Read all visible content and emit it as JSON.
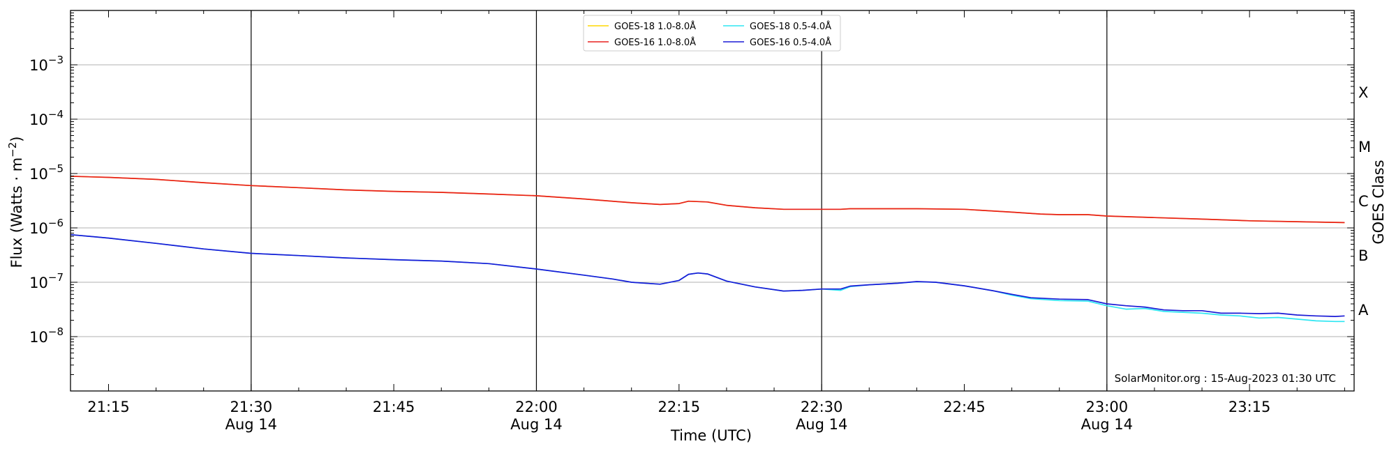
{
  "chart_data": {
    "type": "line",
    "xlabel": "Time (UTC)",
    "ylabel_main": "Flux (Watts · m",
    "ylabel_exp": "−2",
    "ylabel_close": ")",
    "ylabel_right": "GOES Class",
    "y_scale": "log",
    "xlim": [
      "21:11",
      "23:26"
    ],
    "ylim": [
      1e-09,
      0.01
    ],
    "grid": "horizontal at decades",
    "legend_position": "top-center",
    "x_ticks": [
      {
        "time": "21:15",
        "label": "21:15",
        "sublabel": ""
      },
      {
        "time": "21:30",
        "label": "21:30",
        "sublabel": "Aug 14"
      },
      {
        "time": "21:45",
        "label": "21:45",
        "sublabel": ""
      },
      {
        "time": "22:00",
        "label": "22:00",
        "sublabel": "Aug 14"
      },
      {
        "time": "22:15",
        "label": "22:15",
        "sublabel": ""
      },
      {
        "time": "22:30",
        "label": "22:30",
        "sublabel": "Aug 14"
      },
      {
        "time": "22:45",
        "label": "22:45",
        "sublabel": ""
      },
      {
        "time": "23:00",
        "label": "23:00",
        "sublabel": "Aug 14"
      },
      {
        "time": "23:15",
        "label": "23:15",
        "sublabel": ""
      }
    ],
    "vertical_lines": [
      "21:30",
      "22:00",
      "22:30",
      "23:00"
    ],
    "y_ticks": [
      {
        "exp": -3,
        "base": "10",
        "sup": "−3"
      },
      {
        "exp": -4,
        "base": "10",
        "sup": "−4"
      },
      {
        "exp": -5,
        "base": "10",
        "sup": "−5"
      },
      {
        "exp": -6,
        "base": "10",
        "sup": "−6"
      },
      {
        "exp": -7,
        "base": "10",
        "sup": "−7"
      },
      {
        "exp": -8,
        "base": "10",
        "sup": "−8"
      }
    ],
    "goes_classes": [
      {
        "label": "X",
        "log_flux": -3.5
      },
      {
        "label": "M",
        "log_flux": -4.5
      },
      {
        "label": "C",
        "log_flux": -5.5
      },
      {
        "label": "B",
        "log_flux": -6.5
      },
      {
        "label": "A",
        "log_flux": -7.5
      }
    ],
    "series": [
      {
        "name": "GOES-18 1.0-8.0Å",
        "color": "#ffd700",
        "points": [
          [
            "21:11",
            8.9e-06
          ],
          [
            "21:15",
            8.5e-06
          ],
          [
            "21:20",
            7.8e-06
          ],
          [
            "21:25",
            6.8e-06
          ],
          [
            "21:30",
            6e-06
          ],
          [
            "21:35",
            5.5e-06
          ],
          [
            "21:40",
            5e-06
          ],
          [
            "21:45",
            4.7e-06
          ],
          [
            "21:50",
            4.5e-06
          ],
          [
            "21:55",
            4.2e-06
          ],
          [
            "22:00",
            3.9e-06
          ],
          [
            "22:05",
            3.4e-06
          ],
          [
            "22:10",
            2.9e-06
          ],
          [
            "22:13",
            2.7e-06
          ],
          [
            "22:15",
            2.8e-06
          ],
          [
            "22:16",
            3.1e-06
          ],
          [
            "22:18",
            3e-06
          ],
          [
            "22:20",
            2.6e-06
          ],
          [
            "22:23",
            2.35e-06
          ],
          [
            "22:26",
            2.2e-06
          ],
          [
            "22:30",
            2.2e-06
          ],
          [
            "22:32",
            2.2e-06
          ],
          [
            "22:33",
            2.25e-06
          ],
          [
            "22:36",
            2.25e-06
          ],
          [
            "22:40",
            2.25e-06
          ],
          [
            "22:45",
            2.2e-06
          ],
          [
            "22:50",
            1.95e-06
          ],
          [
            "22:53",
            1.8e-06
          ],
          [
            "22:55",
            1.75e-06
          ],
          [
            "22:58",
            1.75e-06
          ],
          [
            "23:00",
            1.65e-06
          ],
          [
            "23:05",
            1.55e-06
          ],
          [
            "23:10",
            1.45e-06
          ],
          [
            "23:15",
            1.35e-06
          ],
          [
            "23:20",
            1.3e-06
          ],
          [
            "23:25",
            1.25e-06
          ]
        ]
      },
      {
        "name": "GOES-16 1.0-8.0Å",
        "color": "#e8201e",
        "points": [
          [
            "21:11",
            8.9e-06
          ],
          [
            "21:15",
            8.5e-06
          ],
          [
            "21:20",
            7.8e-06
          ],
          [
            "21:25",
            6.8e-06
          ],
          [
            "21:30",
            6e-06
          ],
          [
            "21:35",
            5.5e-06
          ],
          [
            "21:40",
            5e-06
          ],
          [
            "21:45",
            4.7e-06
          ],
          [
            "21:50",
            4.5e-06
          ],
          [
            "21:55",
            4.2e-06
          ],
          [
            "22:00",
            3.9e-06
          ],
          [
            "22:05",
            3.4e-06
          ],
          [
            "22:10",
            2.9e-06
          ],
          [
            "22:13",
            2.7e-06
          ],
          [
            "22:15",
            2.8e-06
          ],
          [
            "22:16",
            3.1e-06
          ],
          [
            "22:18",
            3e-06
          ],
          [
            "22:20",
            2.6e-06
          ],
          [
            "22:23",
            2.35e-06
          ],
          [
            "22:26",
            2.2e-06
          ],
          [
            "22:30",
            2.2e-06
          ],
          [
            "22:32",
            2.2e-06
          ],
          [
            "22:33",
            2.25e-06
          ],
          [
            "22:36",
            2.25e-06
          ],
          [
            "22:40",
            2.25e-06
          ],
          [
            "22:45",
            2.2e-06
          ],
          [
            "22:50",
            1.95e-06
          ],
          [
            "22:53",
            1.8e-06
          ],
          [
            "22:55",
            1.75e-06
          ],
          [
            "22:58",
            1.75e-06
          ],
          [
            "23:00",
            1.65e-06
          ],
          [
            "23:05",
            1.55e-06
          ],
          [
            "23:10",
            1.45e-06
          ],
          [
            "23:15",
            1.35e-06
          ],
          [
            "23:20",
            1.3e-06
          ],
          [
            "23:25",
            1.25e-06
          ]
        ]
      },
      {
        "name": "GOES-18 0.5-4.0Å",
        "color": "#2ee6f2",
        "points": [
          [
            "21:11",
            7.5e-07
          ],
          [
            "21:15",
            6.5e-07
          ],
          [
            "21:20",
            5.2e-07
          ],
          [
            "21:25",
            4.1e-07
          ],
          [
            "21:30",
            3.4e-07
          ],
          [
            "21:35",
            3.1e-07
          ],
          [
            "21:40",
            2.8e-07
          ],
          [
            "21:45",
            2.6e-07
          ],
          [
            "21:50",
            2.45e-07
          ],
          [
            "21:55",
            2.2e-07
          ],
          [
            "22:00",
            1.75e-07
          ],
          [
            "22:05",
            1.35e-07
          ],
          [
            "22:08",
            1.15e-07
          ],
          [
            "22:10",
            1e-07
          ],
          [
            "22:13",
            9.2e-08
          ],
          [
            "22:15",
            1.08e-07
          ],
          [
            "22:16",
            1.4e-07
          ],
          [
            "22:17",
            1.48e-07
          ],
          [
            "22:18",
            1.42e-07
          ],
          [
            "22:20",
            1.05e-07
          ],
          [
            "22:23",
            8.2e-08
          ],
          [
            "22:26",
            6.9e-08
          ],
          [
            "22:28",
            7.1e-08
          ],
          [
            "22:30",
            7.5e-08
          ],
          [
            "22:32",
            7.1e-08
          ],
          [
            "22:33",
            8.3e-08
          ],
          [
            "22:35",
            9e-08
          ],
          [
            "22:38",
            9.6e-08
          ],
          [
            "22:40",
            1.02e-07
          ],
          [
            "22:42",
            1e-07
          ],
          [
            "22:45",
            8.6e-08
          ],
          [
            "22:48",
            7e-08
          ],
          [
            "22:50",
            5.8e-08
          ],
          [
            "22:52",
            5e-08
          ],
          [
            "22:55",
            4.6e-08
          ],
          [
            "22:58",
            4.5e-08
          ],
          [
            "23:00",
            3.7e-08
          ],
          [
            "23:02",
            3.2e-08
          ],
          [
            "23:04",
            3.3e-08
          ],
          [
            "23:06",
            2.9e-08
          ],
          [
            "23:08",
            2.8e-08
          ],
          [
            "23:10",
            2.7e-08
          ],
          [
            "23:12",
            2.5e-08
          ],
          [
            "23:14",
            2.4e-08
          ],
          [
            "23:16",
            2.2e-08
          ],
          [
            "23:18",
            2.25e-08
          ],
          [
            "23:20",
            2.1e-08
          ],
          [
            "23:22",
            1.95e-08
          ],
          [
            "23:24",
            1.9e-08
          ],
          [
            "23:25",
            1.9e-08
          ]
        ]
      },
      {
        "name": "GOES-16 0.5-4.0Å",
        "color": "#1a1ad6",
        "points": [
          [
            "21:11",
            7.5e-07
          ],
          [
            "21:15",
            6.5e-07
          ],
          [
            "21:20",
            5.2e-07
          ],
          [
            "21:25",
            4.1e-07
          ],
          [
            "21:30",
            3.4e-07
          ],
          [
            "21:35",
            3.1e-07
          ],
          [
            "21:40",
            2.8e-07
          ],
          [
            "21:45",
            2.6e-07
          ],
          [
            "21:50",
            2.45e-07
          ],
          [
            "21:55",
            2.2e-07
          ],
          [
            "22:00",
            1.75e-07
          ],
          [
            "22:05",
            1.35e-07
          ],
          [
            "22:08",
            1.15e-07
          ],
          [
            "22:10",
            1e-07
          ],
          [
            "22:13",
            9.2e-08
          ],
          [
            "22:15",
            1.08e-07
          ],
          [
            "22:16",
            1.4e-07
          ],
          [
            "22:17",
            1.48e-07
          ],
          [
            "22:18",
            1.42e-07
          ],
          [
            "22:20",
            1.05e-07
          ],
          [
            "22:23",
            8.2e-08
          ],
          [
            "22:26",
            6.9e-08
          ],
          [
            "22:28",
            7.1e-08
          ],
          [
            "22:30",
            7.5e-08
          ],
          [
            "22:32",
            7.5e-08
          ],
          [
            "22:33",
            8.5e-08
          ],
          [
            "22:35",
            9e-08
          ],
          [
            "22:38",
            9.6e-08
          ],
          [
            "22:40",
            1.03e-07
          ],
          [
            "22:42",
            1e-07
          ],
          [
            "22:45",
            8.6e-08
          ],
          [
            "22:48",
            7e-08
          ],
          [
            "22:50",
            6e-08
          ],
          [
            "22:52",
            5.2e-08
          ],
          [
            "22:55",
            4.9e-08
          ],
          [
            "22:58",
            4.8e-08
          ],
          [
            "23:00",
            4e-08
          ],
          [
            "23:02",
            3.7e-08
          ],
          [
            "23:04",
            3.5e-08
          ],
          [
            "23:06",
            3.1e-08
          ],
          [
            "23:08",
            3e-08
          ],
          [
            "23:10",
            3e-08
          ],
          [
            "23:12",
            2.7e-08
          ],
          [
            "23:14",
            2.7e-08
          ],
          [
            "23:16",
            2.65e-08
          ],
          [
            "23:18",
            2.7e-08
          ],
          [
            "23:20",
            2.5e-08
          ],
          [
            "23:22",
            2.4e-08
          ],
          [
            "23:24",
            2.35e-08
          ],
          [
            "23:25",
            2.4e-08
          ]
        ]
      }
    ],
    "annotation": "SolarMonitor.org : 15-Aug-2023 01:30 UTC"
  }
}
